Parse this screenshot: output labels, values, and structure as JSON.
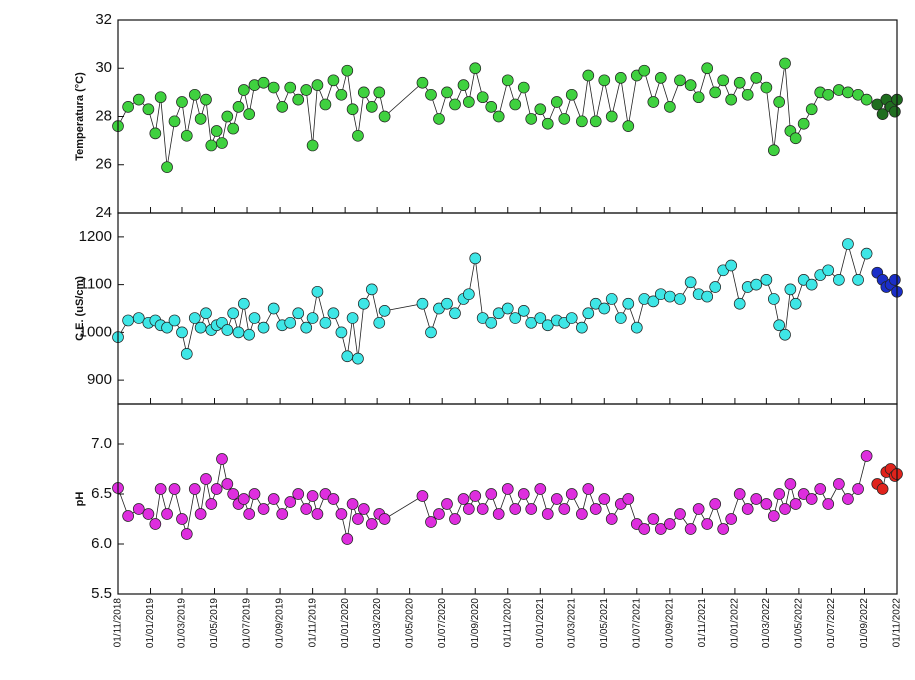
{
  "chart_data": [
    {
      "type": "line",
      "ylabel": "Temperatura (°C)",
      "xlim": [
        "2018-11-01",
        "2022-11-01"
      ],
      "ylim": [
        24,
        32
      ],
      "yticks": [
        24,
        26,
        28,
        30,
        32
      ],
      "series": [
        {
          "color": "#3fd13f",
          "x": [
            "2018-11-01",
            "2018-11-20",
            "2018-12-10",
            "2018-12-28",
            "2019-01-10",
            "2019-01-20",
            "2019-02-01",
            "2019-02-15",
            "2019-03-01",
            "2019-03-10",
            "2019-03-25",
            "2019-04-05",
            "2019-04-15",
            "2019-04-25",
            "2019-05-05",
            "2019-05-15",
            "2019-05-25",
            "2019-06-05",
            "2019-06-15",
            "2019-06-25",
            "2019-07-05",
            "2019-07-15",
            "2019-08-01",
            "2019-08-20",
            "2019-09-05",
            "2019-09-20",
            "2019-10-05",
            "2019-10-20",
            "2019-11-01",
            "2019-11-10",
            "2019-11-25",
            "2019-12-10",
            "2019-12-25",
            "2020-01-05",
            "2020-01-15",
            "2020-01-25",
            "2020-02-05",
            "2020-02-20",
            "2020-03-05",
            "2020-03-15",
            "2020-05-25",
            "2020-06-10",
            "2020-06-25",
            "2020-07-10",
            "2020-07-25",
            "2020-08-10",
            "2020-08-20",
            "2020-09-01",
            "2020-09-15",
            "2020-10-01",
            "2020-10-15",
            "2020-11-01",
            "2020-11-15",
            "2020-12-01",
            "2020-12-15",
            "2021-01-01",
            "2021-01-15",
            "2021-02-01",
            "2021-02-15",
            "2021-03-01",
            "2021-03-20",
            "2021-04-01",
            "2021-04-15",
            "2021-05-01",
            "2021-05-15",
            "2021-06-01",
            "2021-06-15",
            "2021-07-01",
            "2021-07-15",
            "2021-08-01",
            "2021-08-15",
            "2021-09-01",
            "2021-09-20",
            "2021-10-10",
            "2021-10-25",
            "2021-11-10",
            "2021-11-25",
            "2021-12-10",
            "2021-12-25",
            "2022-01-10",
            "2022-01-25",
            "2022-02-10",
            "2022-03-01",
            "2022-03-15",
            "2022-03-25",
            "2022-04-05",
            "2022-04-15",
            "2022-04-25",
            "2022-05-10",
            "2022-05-25",
            "2022-06-10",
            "2022-06-25",
            "2022-07-15",
            "2022-08-01",
            "2022-08-20",
            "2022-09-05"
          ],
          "values": [
            27.6,
            28.4,
            28.7,
            28.3,
            27.3,
            28.8,
            25.9,
            27.8,
            28.6,
            27.2,
            28.9,
            27.9,
            28.7,
            26.8,
            27.4,
            26.9,
            28.0,
            27.5,
            28.4,
            29.1,
            28.1,
            29.3,
            29.4,
            29.2,
            28.4,
            29.2,
            28.7,
            29.1,
            26.8,
            29.3,
            28.5,
            29.5,
            28.9,
            29.9,
            28.3,
            27.2,
            29.0,
            28.4,
            29.0,
            28.0,
            29.4,
            28.9,
            27.9,
            29.0,
            28.5,
            29.3,
            28.6,
            30.0,
            28.8,
            28.4,
            28.0,
            29.5,
            28.5,
            29.2,
            27.9,
            28.3,
            27.7,
            28.6,
            27.9,
            28.9,
            27.8,
            29.7,
            27.8,
            29.5,
            28.0,
            29.6,
            27.6,
            29.7,
            29.9,
            28.6,
            29.6,
            28.4,
            29.5,
            29.3,
            28.8,
            30.0,
            29.0,
            29.5,
            28.7,
            29.4,
            28.9,
            29.6,
            29.2,
            26.6,
            28.6,
            30.2,
            27.4,
            27.1,
            27.7,
            28.3,
            29.0,
            28.9,
            29.1,
            29.0,
            28.9,
            28.7
          ]
        },
        {
          "color": "#1f6e1f",
          "x": [
            "2022-09-25",
            "2022-10-05",
            "2022-10-12",
            "2022-10-20",
            "2022-10-28",
            "2022-11-01"
          ],
          "values": [
            28.5,
            28.1,
            28.7,
            28.4,
            28.2,
            28.7
          ]
        }
      ]
    },
    {
      "type": "line",
      "ylabel": "C.E. (uS/cm)",
      "xlim": [
        "2018-11-01",
        "2022-11-01"
      ],
      "ylim": [
        850,
        1250
      ],
      "yticks": [
        900,
        1000,
        1100,
        1200
      ],
      "series": [
        {
          "color": "#3ee6e6",
          "x": [
            "2018-11-01",
            "2018-11-20",
            "2018-12-10",
            "2018-12-28",
            "2019-01-10",
            "2019-01-20",
            "2019-02-01",
            "2019-02-15",
            "2019-03-01",
            "2019-03-10",
            "2019-03-25",
            "2019-04-05",
            "2019-04-15",
            "2019-04-25",
            "2019-05-05",
            "2019-05-15",
            "2019-05-25",
            "2019-06-05",
            "2019-06-15",
            "2019-06-25",
            "2019-07-05",
            "2019-07-15",
            "2019-08-01",
            "2019-08-20",
            "2019-09-05",
            "2019-09-20",
            "2019-10-05",
            "2019-10-20",
            "2019-11-01",
            "2019-11-10",
            "2019-11-25",
            "2019-12-10",
            "2019-12-25",
            "2020-01-05",
            "2020-01-15",
            "2020-01-25",
            "2020-02-05",
            "2020-02-20",
            "2020-03-05",
            "2020-03-15",
            "2020-05-25",
            "2020-06-10",
            "2020-06-25",
            "2020-07-10",
            "2020-07-25",
            "2020-08-10",
            "2020-08-20",
            "2020-09-01",
            "2020-09-15",
            "2020-10-01",
            "2020-10-15",
            "2020-11-01",
            "2020-11-15",
            "2020-12-01",
            "2020-12-15",
            "2021-01-01",
            "2021-01-15",
            "2021-02-01",
            "2021-02-15",
            "2021-03-01",
            "2021-03-20",
            "2021-04-01",
            "2021-04-15",
            "2021-05-01",
            "2021-05-15",
            "2021-06-01",
            "2021-06-15",
            "2021-07-01",
            "2021-07-15",
            "2021-08-01",
            "2021-08-15",
            "2021-09-01",
            "2021-09-20",
            "2021-10-10",
            "2021-10-25",
            "2021-11-10",
            "2021-11-25",
            "2021-12-10",
            "2021-12-25",
            "2022-01-10",
            "2022-01-25",
            "2022-02-10",
            "2022-03-01",
            "2022-03-15",
            "2022-03-25",
            "2022-04-05",
            "2022-04-15",
            "2022-04-25",
            "2022-05-10",
            "2022-05-25",
            "2022-06-10",
            "2022-06-25",
            "2022-07-15",
            "2022-08-01",
            "2022-08-20",
            "2022-09-05"
          ],
          "values": [
            990,
            1025,
            1030,
            1020,
            1025,
            1015,
            1010,
            1025,
            1000,
            955,
            1030,
            1010,
            1040,
            1005,
            1015,
            1020,
            1005,
            1040,
            1000,
            1060,
            995,
            1030,
            1010,
            1050,
            1015,
            1020,
            1040,
            1010,
            1030,
            1085,
            1020,
            1040,
            1000,
            950,
            1030,
            945,
            1060,
            1090,
            1020,
            1045,
            1060,
            1000,
            1050,
            1060,
            1040,
            1070,
            1080,
            1155,
            1030,
            1020,
            1040,
            1050,
            1030,
            1045,
            1020,
            1030,
            1015,
            1025,
            1020,
            1030,
            1010,
            1040,
            1060,
            1050,
            1070,
            1030,
            1060,
            1010,
            1070,
            1065,
            1080,
            1075,
            1070,
            1105,
            1080,
            1075,
            1095,
            1130,
            1140,
            1060,
            1095,
            1100,
            1110,
            1070,
            1015,
            995,
            1090,
            1060,
            1110,
            1100,
            1120,
            1130,
            1110,
            1185,
            1110,
            1165
          ]
        },
        {
          "color": "#1a2ec8",
          "x": [
            "2022-09-25",
            "2022-10-05",
            "2022-10-12",
            "2022-10-20",
            "2022-10-28",
            "2022-11-01"
          ],
          "values": [
            1125,
            1110,
            1095,
            1100,
            1110,
            1085
          ]
        }
      ]
    },
    {
      "type": "line",
      "ylabel": "pH",
      "xlim": [
        "2018-11-01",
        "2022-11-01"
      ],
      "ylim": [
        5.5,
        7.4
      ],
      "yticks": [
        5.5,
        {
          "value": 6,
          "label": "6.0"
        },
        6.5,
        {
          "value": 7,
          "label": "7.0"
        }
      ],
      "xticks": [
        {
          "value": "2018-11-01",
          "label": "01/11/2018"
        },
        {
          "value": "2019-01-01",
          "label": "01/01/2019"
        },
        {
          "value": "2019-03-01",
          "label": "01/03/2019"
        },
        {
          "value": "2019-05-01",
          "label": "01/05/2019"
        },
        {
          "value": "2019-07-01",
          "label": "01/07/2019"
        },
        {
          "value": "2019-09-01",
          "label": "01/09/2019"
        },
        {
          "value": "2019-11-01",
          "label": "01/11/2019"
        },
        {
          "value": "2020-01-01",
          "label": "01/01/2020"
        },
        {
          "value": "2020-03-01",
          "label": "01/03/2020"
        },
        {
          "value": "2020-05-01",
          "label": "01/05/2020"
        },
        {
          "value": "2020-07-01",
          "label": "01/07/2020"
        },
        {
          "value": "2020-09-01",
          "label": "01/09/2020"
        },
        {
          "value": "2020-11-01",
          "label": "01/11/2020"
        },
        {
          "value": "2021-01-01",
          "label": "01/01/2021"
        },
        {
          "value": "2021-03-01",
          "label": "01/03/2021"
        },
        {
          "value": "2021-05-01",
          "label": "01/05/2021"
        },
        {
          "value": "2021-07-01",
          "label": "01/07/2021"
        },
        {
          "value": "2021-09-01",
          "label": "01/09/2021"
        },
        {
          "value": "2021-11-01",
          "label": "01/11/2021"
        },
        {
          "value": "2022-01-01",
          "label": "01/01/2022"
        },
        {
          "value": "2022-03-01",
          "label": "01/03/2022"
        },
        {
          "value": "2022-05-01",
          "label": "01/05/2022"
        },
        {
          "value": "2022-07-01",
          "label": "01/07/2022"
        },
        {
          "value": "2022-09-01",
          "label": "01/09/2022"
        },
        {
          "value": "2022-11-01",
          "label": "01/11/2022"
        }
      ],
      "series": [
        {
          "color": "#de2ede",
          "x": [
            "2018-11-01",
            "2018-11-20",
            "2018-12-10",
            "2018-12-28",
            "2019-01-10",
            "2019-01-20",
            "2019-02-01",
            "2019-02-15",
            "2019-03-01",
            "2019-03-10",
            "2019-03-25",
            "2019-04-05",
            "2019-04-15",
            "2019-04-25",
            "2019-05-05",
            "2019-05-15",
            "2019-05-25",
            "2019-06-05",
            "2019-06-15",
            "2019-06-25",
            "2019-07-05",
            "2019-07-15",
            "2019-08-01",
            "2019-08-20",
            "2019-09-05",
            "2019-09-20",
            "2019-10-05",
            "2019-10-20",
            "2019-11-01",
            "2019-11-10",
            "2019-11-25",
            "2019-12-10",
            "2019-12-25",
            "2020-01-05",
            "2020-01-15",
            "2020-01-25",
            "2020-02-05",
            "2020-02-20",
            "2020-03-05",
            "2020-03-15",
            "2020-05-25",
            "2020-06-10",
            "2020-06-25",
            "2020-07-10",
            "2020-07-25",
            "2020-08-10",
            "2020-08-20",
            "2020-09-01",
            "2020-09-15",
            "2020-10-01",
            "2020-10-15",
            "2020-11-01",
            "2020-11-15",
            "2020-12-01",
            "2020-12-15",
            "2021-01-01",
            "2021-01-15",
            "2021-02-01",
            "2021-02-15",
            "2021-03-01",
            "2021-03-20",
            "2021-04-01",
            "2021-04-15",
            "2021-05-01",
            "2021-05-15",
            "2021-06-01",
            "2021-06-15",
            "2021-07-01",
            "2021-07-15",
            "2021-08-01",
            "2021-08-15",
            "2021-09-01",
            "2021-09-20",
            "2021-10-10",
            "2021-10-25",
            "2021-11-10",
            "2021-11-25",
            "2021-12-10",
            "2021-12-25",
            "2022-01-10",
            "2022-01-25",
            "2022-02-10",
            "2022-03-01",
            "2022-03-15",
            "2022-03-25",
            "2022-04-05",
            "2022-04-15",
            "2022-04-25",
            "2022-05-10",
            "2022-05-25",
            "2022-06-10",
            "2022-06-25",
            "2022-07-15",
            "2022-08-01",
            "2022-08-20",
            "2022-09-05"
          ],
          "values": [
            6.56,
            6.28,
            6.35,
            6.3,
            6.2,
            6.55,
            6.3,
            6.55,
            6.25,
            6.1,
            6.55,
            6.3,
            6.65,
            6.4,
            6.55,
            6.85,
            6.6,
            6.5,
            6.4,
            6.45,
            6.3,
            6.5,
            6.35,
            6.45,
            6.3,
            6.42,
            6.5,
            6.35,
            6.48,
            6.3,
            6.5,
            6.45,
            6.3,
            6.05,
            6.4,
            6.25,
            6.35,
            6.2,
            6.3,
            6.25,
            6.48,
            6.22,
            6.3,
            6.4,
            6.25,
            6.45,
            6.35,
            6.48,
            6.35,
            6.5,
            6.3,
            6.55,
            6.35,
            6.5,
            6.35,
            6.55,
            6.3,
            6.45,
            6.35,
            6.5,
            6.3,
            6.55,
            6.35,
            6.45,
            6.25,
            6.4,
            6.45,
            6.2,
            6.15,
            6.25,
            6.15,
            6.2,
            6.3,
            6.15,
            6.35,
            6.2,
            6.4,
            6.15,
            6.25,
            6.5,
            6.35,
            6.45,
            6.4,
            6.28,
            6.5,
            6.35,
            6.6,
            6.4,
            6.5,
            6.45,
            6.55,
            6.4,
            6.6,
            6.45,
            6.55,
            6.88
          ]
        },
        {
          "color": "#e0231c",
          "x": [
            "2022-09-25",
            "2022-10-05",
            "2022-10-12",
            "2022-10-20",
            "2022-10-28",
            "2022-11-01"
          ],
          "values": [
            6.6,
            6.55,
            6.72,
            6.75,
            6.68,
            6.7
          ]
        }
      ]
    }
  ]
}
